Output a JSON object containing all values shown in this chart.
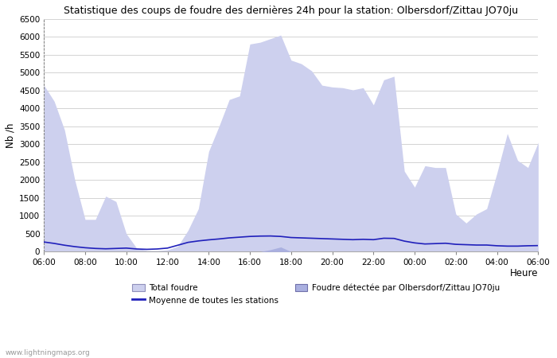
{
  "title": "Statistique des coups de foudre des dernières 24h pour la station: Olbersdorf/Zittau JO70ju",
  "xlabel": "Heure",
  "ylabel": "Nb /h",
  "ylim": [
    0,
    6500
  ],
  "yticks": [
    0,
    500,
    1000,
    1500,
    2000,
    2500,
    3000,
    3500,
    4000,
    4500,
    5000,
    5500,
    6000,
    6500
  ],
  "xtick_labels": [
    "06:00",
    "08:00",
    "10:00",
    "12:00",
    "14:00",
    "16:00",
    "18:00",
    "20:00",
    "22:00",
    "00:00",
    "02:00",
    "04:00",
    "06:00"
  ],
  "watermark": "www.lightningmaps.org",
  "legend_total": "Total foudre",
  "legend_station": "Foudre détectée par Olbersdorf/Zittau JO70ju",
  "legend_mean": "Moyenne de toutes les stations",
  "color_total_fill": "#cdd0ee",
  "color_station_fill": "#aab0e0",
  "color_mean_line": "#2020bb",
  "total_foudre": [
    4650,
    4200,
    3400,
    2000,
    900,
    900,
    1550,
    1400,
    500,
    100,
    30,
    30,
    50,
    150,
    600,
    1200,
    2800,
    3500,
    4250,
    4350,
    5800,
    5850,
    5950,
    6050,
    5350,
    5250,
    5050,
    4650,
    4600,
    4580,
    4520,
    4580,
    4100,
    4800,
    4900,
    2250,
    1800,
    2400,
    2350,
    2350,
    1050,
    800,
    1050,
    1200,
    2200,
    3300,
    2550,
    2350,
    3050
  ],
  "station_foudre": [
    0,
    0,
    0,
    0,
    0,
    0,
    0,
    0,
    0,
    0,
    0,
    0,
    0,
    0,
    0,
    0,
    0,
    0,
    0,
    0,
    0,
    0,
    55,
    130,
    0,
    0,
    0,
    0,
    0,
    0,
    0,
    0,
    0,
    0,
    0,
    0,
    0,
    0,
    0,
    0,
    0,
    0,
    0,
    0,
    0,
    0,
    0,
    0,
    0
  ],
  "mean_line": [
    270,
    230,
    180,
    140,
    110,
    90,
    80,
    90,
    100,
    75,
    65,
    75,
    100,
    180,
    260,
    300,
    330,
    355,
    385,
    405,
    425,
    435,
    438,
    425,
    395,
    385,
    375,
    365,
    355,
    345,
    335,
    345,
    335,
    375,
    370,
    295,
    245,
    215,
    225,
    235,
    205,
    195,
    185,
    185,
    165,
    155,
    155,
    165,
    170
  ]
}
